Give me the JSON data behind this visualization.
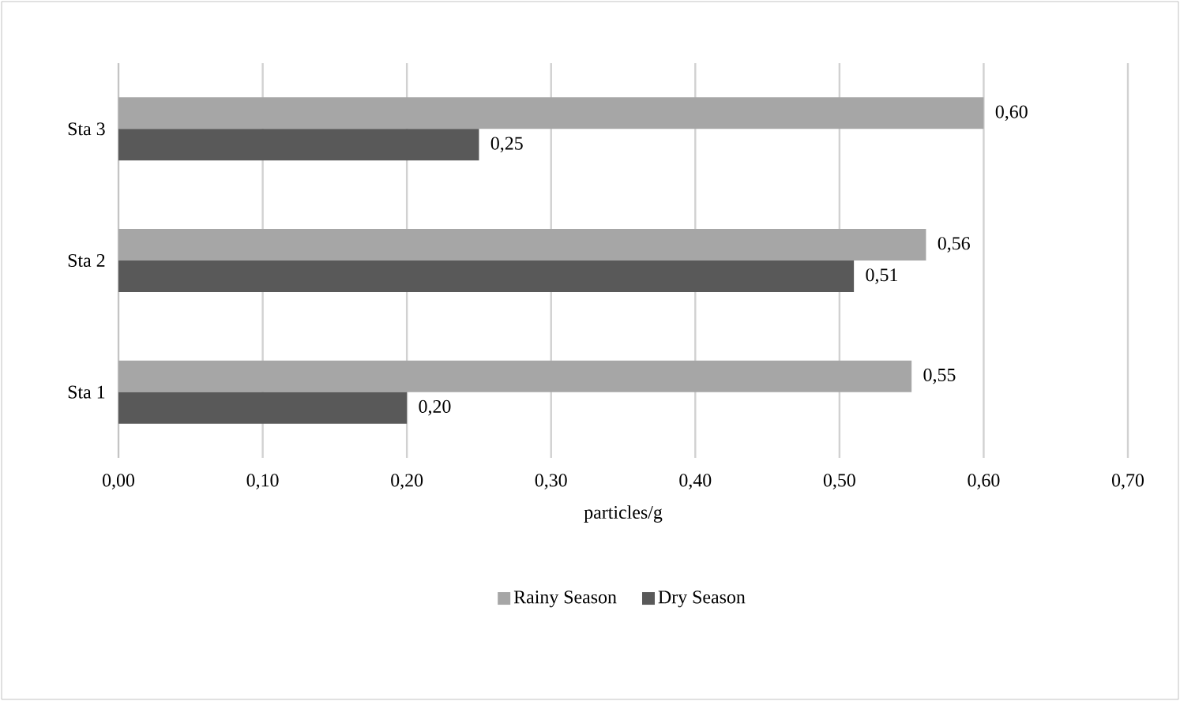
{
  "chart_data": {
    "type": "bar",
    "orientation": "horizontal",
    "xlabel": "particles/g",
    "categories": [
      "Sta 3",
      "Sta 2",
      "Sta 1"
    ],
    "series": [
      {
        "name": "Rainy Season",
        "color": "#a6a6a6",
        "values": [
          0.6,
          0.56,
          0.55
        ],
        "value_labels": [
          "0,60",
          "0,56",
          "0,55"
        ]
      },
      {
        "name": "Dry Season",
        "color": "#595959",
        "values": [
          0.25,
          0.51,
          0.2
        ],
        "value_labels": [
          "0,25",
          "0,51",
          "0,20"
        ]
      }
    ],
    "xlim": [
      0,
      0.7
    ],
    "xticks": [
      {
        "value": 0,
        "label": "0,00"
      },
      {
        "value": 0.1,
        "label": "0,10"
      },
      {
        "value": 0.2,
        "label": "0,20"
      },
      {
        "value": 0.3,
        "label": "0,30"
      },
      {
        "value": 0.4,
        "label": "0,40"
      },
      {
        "value": 0.5,
        "label": "0,50"
      },
      {
        "value": 0.6,
        "label": "0,60"
      },
      {
        "value": 0.7,
        "label": "0,70"
      }
    ],
    "grid": "x",
    "legend": "bottom"
  }
}
